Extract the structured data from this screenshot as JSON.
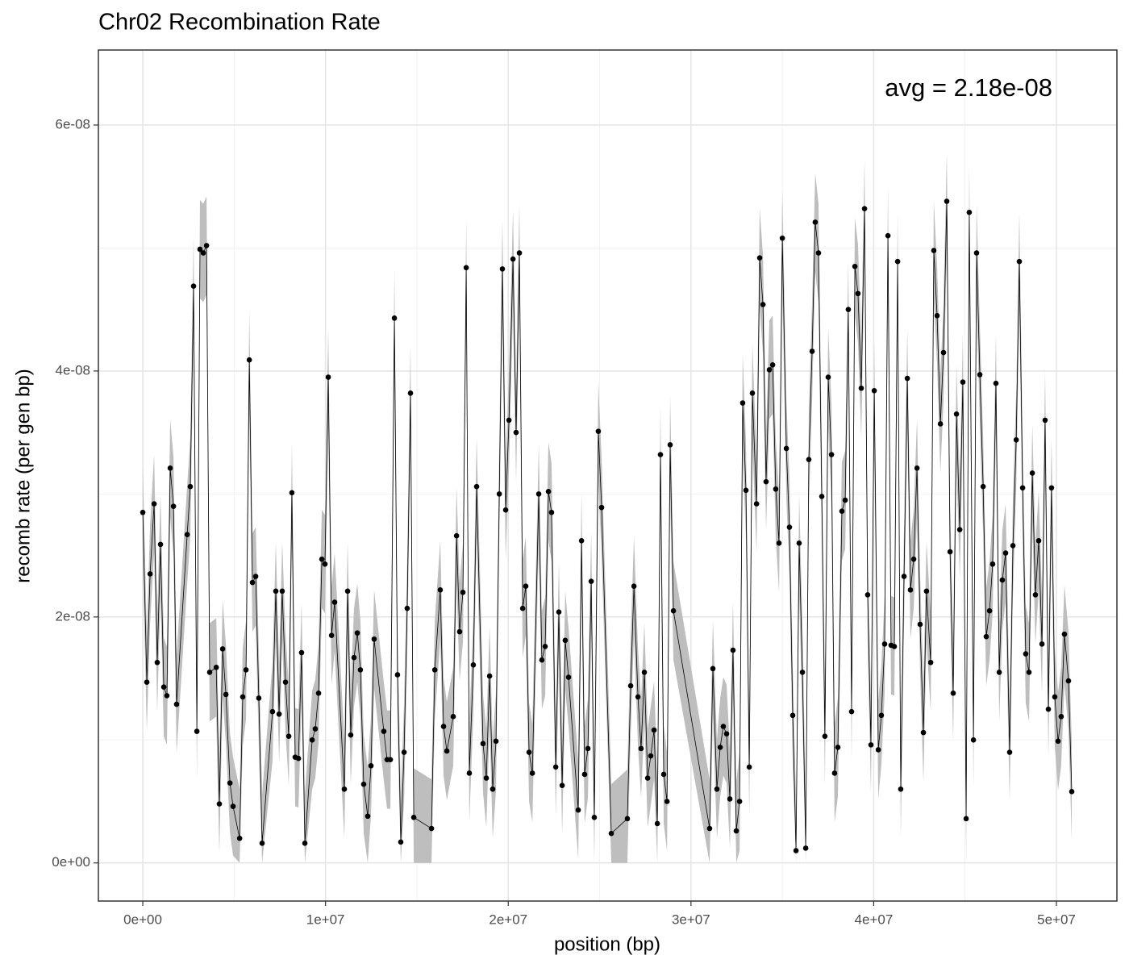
{
  "chart_data": {
    "type": "line",
    "title": "Chr02 Recombination Rate",
    "x_label": "position (bp)",
    "y_label": "recomb rate (per gen bp)",
    "annotation": "avg = 2.18e-08",
    "x": [
      0,
      220000.0,
      400000.0,
      620000.0,
      790000.0,
      970000.0,
      1150000.0,
      1320000.0,
      1500000.0,
      1680000.0,
      1850000.0,
      2430000.0,
      2600000.0,
      2780000.0,
      2960000.0,
      3130000.0,
      3310000.0,
      3490000.0,
      3660000.0,
      4020000.0,
      4190000.0,
      4370000.0,
      4550000.0,
      4770000.0,
      4940000.0,
      5300000.0,
      5470000.0,
      5650000.0,
      5830000.0,
      6000000.0,
      6180000.0,
      6350000.0,
      6530000.0,
      7100000.0,
      7280000.0,
      7460000.0,
      7630000.0,
      7810000.0,
      7990000.0,
      8160000.0,
      8340000.0,
      8520000.0,
      8690000.0,
      8870000.0,
      9270000.0,
      9440000.0,
      9620000.0,
      9800000.0,
      9970000.0,
      10150000.0,
      10330000.0,
      10500000.0,
      11030000.0,
      11210000.0,
      11380000.0,
      11560000.0,
      11740000.0,
      11910000.0,
      12090000.0,
      12310000.0,
      12490000.0,
      12660000.0,
      13190000.0,
      13370000.0,
      13550000.0,
      13770000.0,
      13940000.0,
      14120000.0,
      14300000.0,
      14470000.0,
      14650000.0,
      14830000.0,
      15800000.0,
      15980000.0,
      16280000.0,
      16460000.0,
      16640000.0,
      16990000.0,
      17170000.0,
      17340000.0,
      17520000.0,
      17700000.0,
      17870000.0,
      18090000.0,
      18270000.0,
      18620000.0,
      18800000.0,
      18980000.0,
      19150000.0,
      19330000.0,
      19510000.0,
      19680000.0,
      19860000.0,
      20040000.0,
      20260000.0,
      20430000.0,
      20610000.0,
      20790000.0,
      20960000.0,
      21140000.0,
      21320000.0,
      21670000.0,
      21840000.0,
      22020000.0,
      22200000.0,
      22370000.0,
      22600000.0,
      22770000.0,
      22950000.0,
      23120000.0,
      23300000.0,
      23830000.0,
      24010000.0,
      24180000.0,
      24360000.0,
      24540000.0,
      24710000.0,
      24930000.0,
      25110000.0,
      25640000.0,
      26520000.0,
      26700000.0,
      26880000.0,
      27100000.0,
      27270000.0,
      27450000.0,
      27630000.0,
      27800000.0,
      27980000.0,
      28160000.0,
      28330000.0,
      28510000.0,
      28690000.0,
      28860000.0,
      29040000.0,
      31020000.0,
      31200000.0,
      31420000.0,
      31600000.0,
      31770000.0,
      31950000.0,
      32130000.0,
      32300000.0,
      32480000.0,
      32660000.0,
      32830000.0,
      33010000.0,
      33190000.0,
      33360000.0,
      33590000.0,
      33760000.0,
      33940000.0,
      34110000.0,
      34290000.0,
      34470000.0,
      34640000.0,
      34820000.0,
      35000000.0,
      35220000.0,
      35390000.0,
      35570000.0,
      35750000.0,
      35920000.0,
      36100000.0,
      36280000.0,
      36450000.0,
      36630000.0,
      36800000.0,
      36980000.0,
      37160000.0,
      37330000.0,
      37510000.0,
      37690000.0,
      37860000.0,
      38040000.0,
      38260000.0,
      38440000.0,
      38610000.0,
      38790000.0,
      38970000.0,
      39140000.0,
      39320000.0,
      39500000.0,
      39670000.0,
      39850000.0,
      40030000.0,
      40250000.0,
      40420000.0,
      40600000.0,
      40780000.0,
      40950000.0,
      41130000.0,
      41310000.0,
      41480000.0,
      41660000.0,
      41840000.0,
      42010000.0,
      42190000.0,
      42370000.0,
      42540000.0,
      42720000.0,
      42890000.0,
      43120000.0,
      43290000.0,
      43470000.0,
      43650000.0,
      43820000.0,
      44000000.0,
      44180000.0,
      44350000.0,
      44530000.0,
      44710000.0,
      44880000.0,
      45060000.0,
      45230000.0,
      45460000.0,
      45630000.0,
      45810000.0,
      45990000.0,
      46160000.0,
      46340000.0,
      46510000.0,
      46690000.0,
      46870000.0,
      47040000.0,
      47220000.0,
      47440000.0,
      47620000.0,
      47800000.0,
      47970000.0,
      48150000.0,
      48320000.0,
      48500000.0,
      48680000.0,
      48850000.0,
      49030000.0,
      49210000.0,
      49380000.0,
      49560000.0,
      49730000.0,
      49910000.0,
      50090000.0,
      50260000.0,
      50440000.0,
      50660000.0,
      50840000.0
    ],
    "series": [
      {
        "color": "#000000",
        "values": [
          2.85e-08,
          1.47e-08,
          2.35e-08,
          2.92e-08,
          1.63e-08,
          2.59e-08,
          1.43e-08,
          1.36e-08,
          3.21e-08,
          2.9e-08,
          1.29e-08,
          2.67e-08,
          3.06e-08,
          4.69e-08,
          1.07e-08,
          4.99e-08,
          4.96e-08,
          5.02e-08,
          1.55e-08,
          1.59e-08,
          4.8e-09,
          1.74e-08,
          1.37e-08,
          6.5e-09,
          4.6e-09,
          2e-09,
          1.35e-08,
          1.57e-08,
          4.09e-08,
          2.28e-08,
          2.33e-08,
          1.34e-08,
          1.6e-09,
          1.23e-08,
          2.21e-08,
          1.21e-08,
          2.21e-08,
          1.47e-08,
          1.03e-08,
          3.01e-08,
          8.6e-09,
          8.5e-09,
          1.71e-08,
          1.6e-09,
          1e-08,
          1.09e-08,
          1.38e-08,
          2.47e-08,
          2.43e-08,
          3.95e-08,
          1.85e-08,
          2.12e-08,
          6e-09,
          2.21e-08,
          1.04e-08,
          1.67e-08,
          1.87e-08,
          1.57e-08,
          6.4e-09,
          3.8e-09,
          7.9e-09,
          1.82e-08,
          1.07e-08,
          8.4e-09,
          8.4e-09,
          4.43e-08,
          1.53e-08,
          1.7e-09,
          9e-09,
          2.07e-08,
          3.82e-08,
          3.7e-09,
          2.8e-09,
          1.57e-08,
          2.22e-08,
          1.11e-08,
          9.1e-09,
          1.19e-08,
          2.66e-08,
          1.88e-08,
          2.2e-08,
          4.84e-08,
          7.3e-09,
          1.61e-08,
          3.06e-08,
          9.7e-09,
          6.9e-09,
          1.52e-08,
          6e-09,
          9.9e-09,
          3e-08,
          4.83e-08,
          2.87e-08,
          3.6e-08,
          4.91e-08,
          3.5e-08,
          4.96e-08,
          2.07e-08,
          2.25e-08,
          9e-09,
          7.3e-09,
          3e-08,
          1.65e-08,
          1.76e-08,
          3.02e-08,
          2.85e-08,
          7.8e-09,
          2.04e-08,
          6.3e-09,
          1.81e-08,
          1.51e-08,
          4.3e-09,
          2.62e-08,
          7.2e-09,
          9.3e-09,
          2.29e-08,
          3.7e-09,
          3.51e-08,
          2.89e-08,
          2.4e-09,
          3.6e-09,
          1.44e-08,
          2.25e-08,
          1.35e-08,
          9.3e-09,
          1.55e-08,
          6.9e-09,
          8.7e-09,
          1.08e-08,
          3.2e-09,
          3.32e-08,
          7.2e-09,
          5e-09,
          3.4e-08,
          2.05e-08,
          2.8e-09,
          1.58e-08,
          6e-09,
          9.4e-09,
          1.11e-08,
          1.05e-08,
          5.2e-09,
          1.73e-08,
          2.6e-09,
          5e-09,
          3.74e-08,
          3.03e-08,
          7.8e-09,
          3.82e-08,
          2.92e-08,
          4.92e-08,
          4.54e-08,
          3.1e-08,
          4.01e-08,
          4.05e-08,
          3.04e-08,
          2.6e-08,
          5.08e-08,
          3.37e-08,
          2.73e-08,
          1.2e-08,
          1e-09,
          2.6e-08,
          1.55e-08,
          1.2e-09,
          3.28e-08,
          4.16e-08,
          5.21e-08,
          4.96e-08,
          2.98e-08,
          1.03e-08,
          3.95e-08,
          3.32e-08,
          7.3e-09,
          9.4e-09,
          2.86e-08,
          2.95e-08,
          4.5e-08,
          1.23e-08,
          4.85e-08,
          4.63e-08,
          3.86e-08,
          5.32e-08,
          2.18e-08,
          9.6e-09,
          3.84e-08,
          9.2e-09,
          1.2e-08,
          1.78e-08,
          5.1e-08,
          1.77e-08,
          1.76e-08,
          4.89e-08,
          6e-09,
          2.33e-08,
          3.94e-08,
          2.22e-08,
          2.47e-08,
          3.21e-08,
          1.94e-08,
          1.06e-08,
          2.21e-08,
          1.63e-08,
          4.98e-08,
          4.45e-08,
          3.57e-08,
          4.15e-08,
          5.38e-08,
          2.53e-08,
          1.38e-08,
          3.65e-08,
          2.71e-08,
          3.91e-08,
          3.6e-09,
          5.29e-08,
          1e-08,
          4.96e-08,
          3.97e-08,
          3.06e-08,
          1.84e-08,
          2.05e-08,
          2.43e-08,
          3.9e-08,
          1.55e-08,
          2.3e-08,
          2.52e-08,
          9e-09,
          2.58e-08,
          3.44e-08,
          4.89e-08,
          3.05e-08,
          1.7e-08,
          1.55e-08,
          3.17e-08,
          2.18e-08,
          2.62e-08,
          1.78e-08,
          3.6e-08,
          1.25e-08,
          3.05e-08,
          1.35e-08,
          9.9e-09,
          1.19e-08,
          1.86e-08,
          1.48e-08,
          5.8e-09
        ]
      }
    ],
    "ribbon": {
      "color": "#bebebe",
      "lower": [
        2.45e-08,
        1.07e-08,
        1.95e-08,
        2.52e-08,
        1.23e-08,
        2.19e-08,
        1.03e-08,
        9.6e-09,
        2.81e-08,
        2.5e-08,
        8.9e-09,
        2.27e-08,
        2.66e-08,
        4.29e-08,
        6.7e-09,
        4.59e-08,
        4.56e-08,
        4.62e-08,
        1.15e-08,
        1.19e-08,
        8e-10,
        1.34e-08,
        9.7e-09,
        2.5e-09,
        6e-10,
        0,
        9.5e-09,
        1.17e-08,
        3.69e-08,
        1.88e-08,
        1.93e-08,
        9.4e-09,
        0,
        8.3e-09,
        1.81e-08,
        8.1e-09,
        1.81e-08,
        1.07e-08,
        6.3e-09,
        2.61e-08,
        4.6e-09,
        4.5e-09,
        1.31e-08,
        0,
        6e-09,
        6.9e-09,
        9.8e-09,
        2.07e-08,
        2.03e-08,
        3.55e-08,
        1.45e-08,
        1.72e-08,
        2e-09,
        1.81e-08,
        6.4e-09,
        1.27e-08,
        1.47e-08,
        1.17e-08,
        2.4e-09,
        0,
        3.9e-09,
        1.42e-08,
        6.7e-09,
        4.4e-09,
        4.4e-09,
        4.03e-08,
        1.13e-08,
        0,
        5e-09,
        1.67e-08,
        3.42e-08,
        0,
        0,
        1.17e-08,
        1.82e-08,
        7.1e-09,
        5.1e-09,
        7.9e-09,
        2.26e-08,
        1.48e-08,
        1.8e-08,
        4.44e-08,
        3.3e-09,
        1.21e-08,
        2.66e-08,
        5.7e-09,
        2.9e-09,
        1.12e-08,
        2e-09,
        5.9e-09,
        2.6e-08,
        4.43e-08,
        2.47e-08,
        3.2e-08,
        4.51e-08,
        3.1e-08,
        4.56e-08,
        1.67e-08,
        1.85e-08,
        5e-09,
        3.3e-09,
        2.6e-08,
        1.25e-08,
        1.36e-08,
        2.62e-08,
        2.45e-08,
        3.8e-09,
        1.64e-08,
        2.3e-09,
        1.41e-08,
        1.11e-08,
        3e-10,
        2.22e-08,
        3.2e-09,
        5.3e-09,
        1.89e-08,
        0,
        3.11e-08,
        2.49e-08,
        0,
        0,
        1.04e-08,
        1.85e-08,
        9.5e-09,
        5.3e-09,
        1.15e-08,
        2.9e-09,
        4.7e-09,
        6.8e-09,
        0,
        2.92e-08,
        3.2e-09,
        1e-09,
        3e-08,
        1.65e-08,
        0,
        1.18e-08,
        2e-09,
        5.4e-09,
        7.1e-09,
        6.5e-09,
        1.2e-09,
        1.33e-08,
        0,
        1e-09,
        3.34e-08,
        2.63e-08,
        3.8e-09,
        3.42e-08,
        2.52e-08,
        4.52e-08,
        4.14e-08,
        2.7e-08,
        3.61e-08,
        3.65e-08,
        2.64e-08,
        2.2e-08,
        4.68e-08,
        2.97e-08,
        2.33e-08,
        8e-09,
        0,
        2.2e-08,
        1.15e-08,
        0,
        2.88e-08,
        3.76e-08,
        4.81e-08,
        4.56e-08,
        2.58e-08,
        6.3e-09,
        3.55e-08,
        2.92e-08,
        3.3e-09,
        5.4e-09,
        2.46e-08,
        2.55e-08,
        4.1e-08,
        8.3e-09,
        4.45e-08,
        4.23e-08,
        3.46e-08,
        4.92e-08,
        1.78e-08,
        5.6e-09,
        3.44e-08,
        5.2e-09,
        8e-09,
        1.38e-08,
        4.7e-08,
        1.37e-08,
        1.36e-08,
        4.49e-08,
        2e-09,
        1.93e-08,
        3.54e-08,
        1.82e-08,
        2.07e-08,
        2.81e-08,
        1.54e-08,
        6.6e-09,
        1.81e-08,
        1.23e-08,
        4.58e-08,
        4.05e-08,
        3.17e-08,
        3.75e-08,
        4.98e-08,
        2.13e-08,
        9.8e-09,
        3.25e-08,
        2.31e-08,
        3.51e-08,
        0,
        4.89e-08,
        6e-09,
        4.56e-08,
        3.57e-08,
        2.66e-08,
        1.44e-08,
        1.65e-08,
        2.03e-08,
        3.5e-08,
        1.15e-08,
        1.9e-08,
        2.12e-08,
        5e-09,
        2.18e-08,
        3.04e-08,
        4.49e-08,
        2.65e-08,
        1.3e-08,
        1.15e-08,
        2.77e-08,
        1.78e-08,
        2.22e-08,
        1.38e-08,
        3.2e-08,
        8.5e-09,
        2.65e-08,
        9.5e-09,
        5.9e-09,
        7.9e-09,
        1.46e-08,
        1.08e-08,
        1.8e-09
      ],
      "upper": [
        3.25e-08,
        1.87e-08,
        2.75e-08,
        3.32e-08,
        2.03e-08,
        2.99e-08,
        1.83e-08,
        1.76e-08,
        3.61e-08,
        3.3e-08,
        1.69e-08,
        3.07e-08,
        3.46e-08,
        5.09e-08,
        1.47e-08,
        5.39e-08,
        5.36e-08,
        5.42e-08,
        1.95e-08,
        1.99e-08,
        8.8e-09,
        2.14e-08,
        1.77e-08,
        1.05e-08,
        8.6e-09,
        6e-09,
        1.75e-08,
        1.97e-08,
        4.49e-08,
        2.68e-08,
        2.73e-08,
        1.74e-08,
        5.6e-09,
        1.63e-08,
        2.61e-08,
        1.61e-08,
        2.61e-08,
        1.87e-08,
        1.43e-08,
        3.41e-08,
        1.26e-08,
        1.25e-08,
        2.11e-08,
        5.6e-09,
        1.4e-08,
        1.49e-08,
        1.78e-08,
        2.87e-08,
        2.83e-08,
        4.35e-08,
        2.25e-08,
        2.52e-08,
        1e-08,
        2.61e-08,
        1.44e-08,
        2.07e-08,
        2.27e-08,
        1.97e-08,
        1.04e-08,
        7.8e-09,
        1.19e-08,
        2.22e-08,
        1.47e-08,
        1.24e-08,
        1.24e-08,
        4.83e-08,
        1.93e-08,
        5.7e-09,
        1.3e-08,
        2.47e-08,
        4.22e-08,
        7.7e-09,
        6.8e-09,
        1.97e-08,
        2.62e-08,
        1.51e-08,
        1.31e-08,
        1.59e-08,
        3.06e-08,
        2.28e-08,
        2.6e-08,
        5.24e-08,
        1.13e-08,
        2.01e-08,
        3.46e-08,
        1.37e-08,
        1.09e-08,
        1.92e-08,
        1e-08,
        1.39e-08,
        3.4e-08,
        5.23e-08,
        3.27e-08,
        4e-08,
        5.31e-08,
        3.9e-08,
        5.36e-08,
        2.47e-08,
        2.65e-08,
        1.3e-08,
        1.13e-08,
        3.4e-08,
        2.05e-08,
        2.16e-08,
        3.42e-08,
        3.25e-08,
        1.18e-08,
        2.44e-08,
        1.03e-08,
        2.21e-08,
        1.91e-08,
        8.3e-09,
        3.02e-08,
        1.12e-08,
        1.33e-08,
        2.69e-08,
        7.7e-09,
        3.91e-08,
        3.29e-08,
        6.4e-09,
        7.6e-09,
        1.84e-08,
        2.65e-08,
        1.75e-08,
        1.33e-08,
        1.95e-08,
        1.09e-08,
        1.27e-08,
        1.48e-08,
        7.2e-09,
        3.72e-08,
        1.12e-08,
        9e-09,
        3.8e-08,
        2.45e-08,
        6.8e-09,
        1.98e-08,
        1e-08,
        1.34e-08,
        1.51e-08,
        1.45e-08,
        9.2e-09,
        2.13e-08,
        6.6e-09,
        9e-09,
        4.14e-08,
        3.43e-08,
        1.18e-08,
        4.22e-08,
        3.32e-08,
        5.32e-08,
        4.94e-08,
        3.5e-08,
        4.41e-08,
        4.45e-08,
        3.44e-08,
        3e-08,
        5.48e-08,
        3.77e-08,
        3.13e-08,
        1.6e-08,
        5e-09,
        3e-08,
        1.95e-08,
        5.2e-09,
        3.68e-08,
        4.56e-08,
        5.61e-08,
        5.36e-08,
        3.38e-08,
        1.43e-08,
        4.35e-08,
        3.72e-08,
        1.13e-08,
        1.34e-08,
        3.26e-08,
        3.35e-08,
        4.9e-08,
        1.63e-08,
        5.25e-08,
        5.03e-08,
        4.26e-08,
        5.72e-08,
        2.58e-08,
        1.36e-08,
        4.24e-08,
        1.32e-08,
        1.6e-08,
        2.18e-08,
        5.5e-08,
        2.17e-08,
        2.16e-08,
        5.29e-08,
        1e-08,
        2.73e-08,
        4.34e-08,
        2.62e-08,
        2.87e-08,
        3.61e-08,
        2.34e-08,
        1.46e-08,
        2.61e-08,
        2.03e-08,
        5.38e-08,
        4.85e-08,
        3.97e-08,
        4.55e-08,
        5.78e-08,
        2.93e-08,
        1.78e-08,
        4.05e-08,
        3.11e-08,
        4.31e-08,
        7.6e-09,
        5.69e-08,
        1.4e-08,
        5.36e-08,
        4.37e-08,
        3.46e-08,
        2.24e-08,
        2.45e-08,
        2.83e-08,
        4.3e-08,
        1.95e-08,
        2.7e-08,
        2.92e-08,
        1.3e-08,
        2.98e-08,
        3.84e-08,
        5.29e-08,
        3.45e-08,
        2.1e-08,
        1.95e-08,
        3.57e-08,
        2.58e-08,
        3.02e-08,
        2.18e-08,
        4e-08,
        1.65e-08,
        3.45e-08,
        1.75e-08,
        1.39e-08,
        1.59e-08,
        2.26e-08,
        1.88e-08,
        9.8e-09
      ]
    },
    "xlim": [
      -2430000.0,
      53310000.0
    ],
    "ylim": [
      -3.1e-09,
      6.61e-08
    ],
    "xticks": [
      {
        "value": 0,
        "label": "0e+00"
      },
      {
        "value": 10000000.0,
        "label": "1e+07"
      },
      {
        "value": 20000000.0,
        "label": "2e+07"
      },
      {
        "value": 30000000.0,
        "label": "3e+07"
      },
      {
        "value": 40000000.0,
        "label": "4e+07"
      },
      {
        "value": 50000000.0,
        "label": "5e+07"
      }
    ],
    "yticks": [
      {
        "value": 0,
        "label": "0e+00"
      },
      {
        "value": 2e-08,
        "label": "2e-08"
      },
      {
        "value": 4e-08,
        "label": "4e-08"
      },
      {
        "value": 6e-08,
        "label": "6e-08"
      }
    ],
    "minor_xticks": [
      5000000.0,
      15000000.0,
      25000000.0,
      35000000.0,
      45000000.0
    ],
    "minor_yticks": [
      1e-08,
      3e-08,
      5e-08
    ],
    "grid": true
  }
}
